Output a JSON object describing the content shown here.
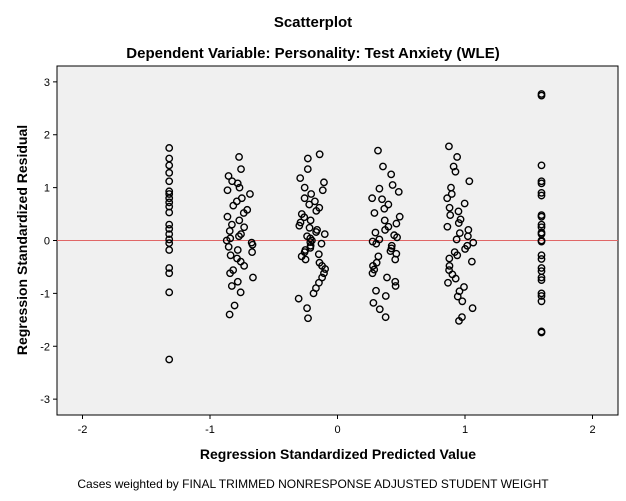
{
  "chart_data": {
    "type": "scatter",
    "title": "Scatterplot",
    "subtitle": "Dependent Variable: Personality: Test Anxiety (WLE)",
    "xlabel": "Regression Standardized Predicted Value",
    "ylabel": "Regression Standardized Residual",
    "footnote": "Cases weighted by FINAL TRIMMED NONRESPONSE ADJUSTED STUDENT WEIGHT",
    "xlim": [
      -2.2,
      2.2
    ],
    "ylim": [
      -3.3,
      3.3
    ],
    "x_ticks": [
      "-2",
      "-1",
      "0",
      "1",
      "2"
    ],
    "y_ticks": [
      "-3",
      "-2",
      "-1",
      "0",
      "1",
      "2",
      "3"
    ],
    "reference_line_y": 0,
    "colors": {
      "plot_background": "#f0f0f0",
      "marker_stroke": "#000000",
      "reference_line": "#e06666"
    },
    "marker": "open-circle",
    "clusters": [
      {
        "x": -1.32,
        "y": [
          1.75,
          1.55,
          1.42,
          1.28,
          1.12,
          0.93,
          0.88,
          0.8,
          0.72,
          0.64,
          0.53,
          0.3,
          0.22,
          0.12,
          0.02,
          -0.05,
          -0.18,
          -0.52,
          -0.62,
          -0.98,
          -2.25
        ]
      },
      {
        "x": -0.77,
        "y": [
          1.58,
          1.35,
          1.22,
          1.12,
          1.08,
          1.0,
          0.95,
          0.88,
          0.8,
          0.74,
          0.66,
          0.58,
          0.52,
          0.45,
          0.38,
          0.3,
          0.25,
          0.18,
          0.12,
          0.08,
          0.04,
          0.0,
          -0.04,
          -0.08,
          -0.12,
          -0.18,
          -0.22,
          -0.28,
          -0.34,
          -0.4,
          -0.48,
          -0.56,
          -0.62,
          -0.7,
          -0.78,
          -0.86,
          -0.98,
          -1.23,
          -1.4
        ]
      },
      {
        "x": -0.2,
        "y": [
          1.63,
          1.55,
          1.35,
          1.18,
          1.1,
          1.0,
          0.95,
          0.88,
          0.8,
          0.74,
          0.68,
          0.62,
          0.56,
          0.5,
          0.44,
          0.38,
          0.34,
          0.28,
          0.24,
          0.2,
          0.16,
          0.12,
          0.08,
          0.04,
          0.0,
          -0.03,
          -0.06,
          -0.1,
          -0.14,
          -0.18,
          -0.22,
          -0.26,
          -0.3,
          -0.36,
          -0.42,
          -0.48,
          -0.54,
          -0.62,
          -0.7,
          -0.8,
          -0.9,
          -1.0,
          -1.1,
          -1.28,
          -1.47
        ]
      },
      {
        "x": 0.38,
        "y": [
          1.7,
          1.4,
          1.25,
          1.05,
          0.98,
          0.92,
          0.8,
          0.78,
          0.68,
          0.6,
          0.52,
          0.45,
          0.38,
          0.32,
          0.26,
          0.2,
          0.15,
          0.1,
          0.06,
          0.02,
          -0.02,
          -0.06,
          -0.1,
          -0.15,
          -0.2,
          -0.25,
          -0.3,
          -0.36,
          -0.42,
          -0.48,
          -0.55,
          -0.62,
          -0.7,
          -0.78,
          -0.86,
          -0.95,
          -1.05,
          -1.18,
          -1.3,
          -1.45
        ]
      },
      {
        "x": 0.97,
        "y": [
          1.78,
          1.58,
          1.4,
          1.3,
          1.12,
          1.0,
          0.88,
          0.8,
          0.7,
          0.62,
          0.55,
          0.48,
          0.4,
          0.33,
          0.26,
          0.2,
          0.14,
          0.08,
          0.02,
          -0.04,
          -0.1,
          -0.16,
          -0.22,
          -0.28,
          -0.34,
          -0.4,
          -0.48,
          -0.56,
          -0.64,
          -0.72,
          -0.8,
          -0.88,
          -0.96,
          -1.06,
          -1.15,
          -1.28,
          -1.45,
          -1.52
        ]
      },
      {
        "x": 1.6,
        "y": [
          2.77,
          2.74,
          1.42,
          1.12,
          1.08,
          0.9,
          0.85,
          0.48,
          0.45,
          0.3,
          0.25,
          0.15,
          0.12,
          0.0,
          -0.02,
          -0.28,
          -0.35,
          -0.52,
          -0.58,
          -0.7,
          -0.75,
          -1.0,
          -1.05,
          -1.15,
          -1.72,
          -1.74
        ]
      }
    ]
  }
}
